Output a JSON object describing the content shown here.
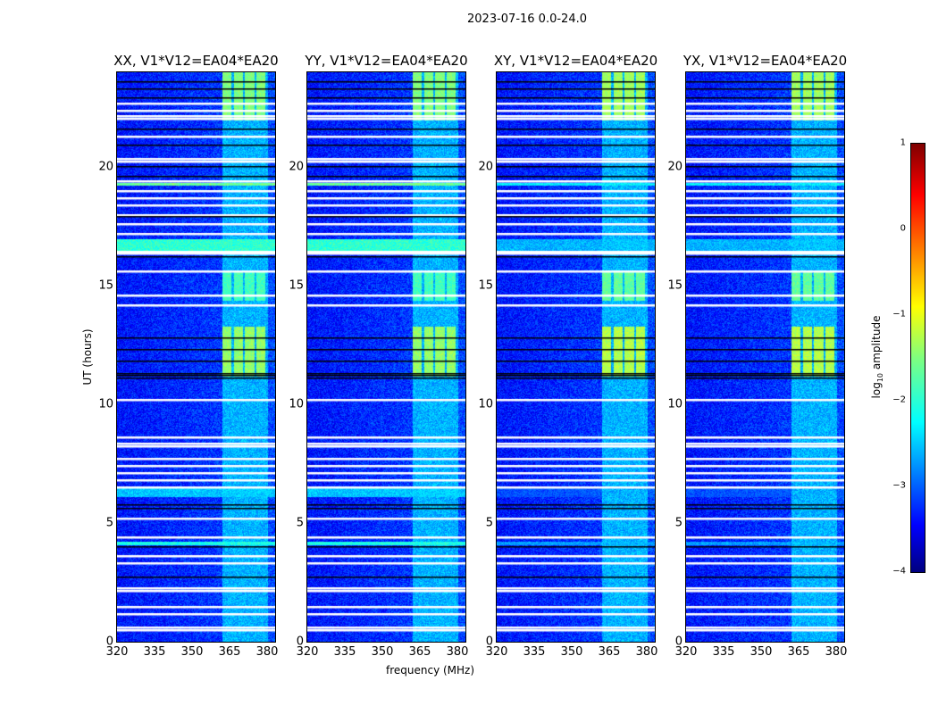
{
  "suptitle": "2023-07-16 0.0-24.0",
  "chart_data": {
    "type": "heatmap",
    "title": "2023-07-16 0.0-24.0",
    "xlabel": "frequency (MHz)",
    "ylabel": "UT (hours)",
    "xlim": [
      320,
      383.2
    ],
    "ylim": [
      0,
      24
    ],
    "xticks": [
      "320",
      "335",
      "350",
      "365",
      "380"
    ],
    "yticks": [
      "0",
      "5",
      "10",
      "15",
      "20"
    ],
    "panels": [
      {
        "title": "XX, V1*V12=EA04*EA20",
        "strength": 1.0
      },
      {
        "title": "YY, V1*V12=EA04*EA20",
        "strength": 1.0
      },
      {
        "title": "XY, V1*V12=EA04*EA20",
        "strength": 0.8
      },
      {
        "title": "YX, V1*V12=EA04*EA20",
        "strength": 0.8
      }
    ],
    "colorbar": {
      "label_main": "log",
      "label_sub": "10",
      "label_rest": " amplitude",
      "range": [
        -4,
        1
      ],
      "ticks": [
        "1",
        "0",
        "−1",
        "−2",
        "−3",
        "−4"
      ],
      "colormap": "jet"
    },
    "background_level": -3.3,
    "rfi_band_mhz": [
      362,
      380
    ],
    "rfi_level": -2.5,
    "rfi_strong_hours": [
      [
        11.2,
        13.3,
        -1.4
      ],
      [
        14.4,
        15.6,
        -1.8
      ],
      [
        22.0,
        24.0,
        -1.5
      ]
    ],
    "broadband_bright_hours": [
      [
        16.4,
        17.0,
        -1.9
      ],
      [
        19.25,
        19.35,
        -1.6
      ],
      [
        4.1,
        4.25,
        -2.0
      ],
      [
        6.1,
        6.5,
        -2.4
      ]
    ],
    "flagged_hours_white": [
      0.5,
      0.6,
      1.15,
      1.45,
      2.15,
      2.25,
      3.3,
      3.6,
      4.4,
      5.2,
      6.5,
      6.8,
      7.1,
      7.4,
      7.7,
      8.25,
      8.35,
      8.6,
      10.2,
      14.2,
      14.6,
      15.6,
      16.35,
      16.45,
      17.2,
      17.6,
      18.0,
      18.4,
      18.7,
      19.0,
      19.4,
      20.25,
      20.35,
      21.3,
      22.05,
      22.15,
      22.4,
      22.7
    ],
    "dropout_hours_black": [
      2.7,
      4.0,
      5.6,
      5.75,
      11.1,
      11.2,
      11.3,
      11.8,
      12.3,
      12.8,
      16.2,
      17.9,
      19.6,
      20.0,
      20.9,
      21.6,
      22.9,
      23.3,
      23.6
    ]
  }
}
